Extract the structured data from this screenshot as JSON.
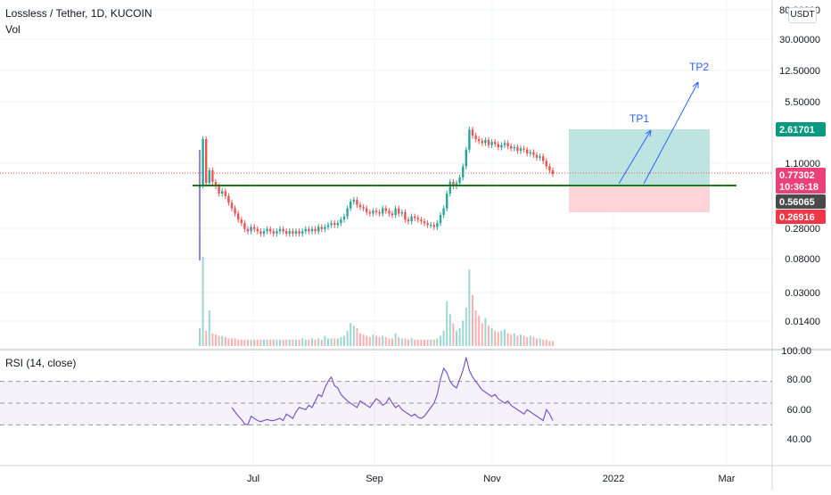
{
  "header": {
    "symbol_line": "Lossless / Tether, 1D, KUCOIN",
    "volume_label": "Vol",
    "currency": "USDT"
  },
  "rsi": {
    "label": "RSI (14, close)"
  },
  "colors": {
    "up": "#26a69a",
    "down": "#ef5350",
    "rsi_line": "#7e57c2",
    "support_line": "#1b7a1b",
    "target_zone": "#b2dfdb",
    "stop_zone": "#ffcdd2",
    "annotation": "#2962ff",
    "current_price_bg": "#ec407a",
    "stop_bg": "#f23645",
    "target_bg": "#089981",
    "level_bg": "#4a4a4a"
  },
  "chart_data": [
    {
      "type": "candlestick",
      "title": "Lossless / Tether, 1D, KUCOIN",
      "y_scale": "log",
      "y_tick_labels": [
        "80.00000",
        "30.00000",
        "12.50000",
        "5.50000",
        "1.10000",
        "0.28000",
        "0.08000",
        "0.03000",
        "0.01400"
      ],
      "x_tick_labels": [
        "Jul",
        "Sep",
        "Nov",
        "2022",
        "Mar"
      ],
      "price_labels": {
        "target": "2.61701",
        "current": "0.77302",
        "countdown": "10:36:18",
        "level": "0.56065",
        "stop": "0.26916"
      },
      "horizontal_level": 0.56065,
      "position": {
        "entry": 0.56065,
        "target": 2.61701,
        "stop": 0.26916
      },
      "annotations": [
        "TP1",
        "TP2"
      ],
      "price_path": [
        [
          0,
          0.56
        ],
        [
          1,
          2.0
        ],
        [
          2,
          0.6
        ],
        [
          3,
          0.85
        ],
        [
          4,
          0.62
        ],
        [
          5,
          0.55
        ],
        [
          6,
          0.45
        ],
        [
          7,
          0.48
        ],
        [
          8,
          0.42
        ],
        [
          9,
          0.35
        ],
        [
          10,
          0.3
        ],
        [
          11,
          0.26
        ],
        [
          12,
          0.22
        ],
        [
          13,
          0.2
        ],
        [
          14,
          0.17
        ],
        [
          15,
          0.16
        ],
        [
          16,
          0.18
        ],
        [
          17,
          0.17
        ],
        [
          18,
          0.16
        ],
        [
          19,
          0.15
        ],
        [
          20,
          0.16
        ],
        [
          21,
          0.17
        ],
        [
          22,
          0.16
        ],
        [
          23,
          0.15
        ],
        [
          24,
          0.16
        ],
        [
          25,
          0.17
        ],
        [
          26,
          0.16
        ],
        [
          27,
          0.15
        ],
        [
          28,
          0.16
        ],
        [
          29,
          0.15
        ],
        [
          30,
          0.16
        ],
        [
          31,
          0.15
        ],
        [
          32,
          0.16
        ],
        [
          33,
          0.17
        ],
        [
          34,
          0.16
        ],
        [
          35,
          0.17
        ],
        [
          36,
          0.16
        ],
        [
          37,
          0.18
        ],
        [
          38,
          0.17
        ],
        [
          39,
          0.18
        ],
        [
          40,
          0.19
        ],
        [
          41,
          0.2
        ],
        [
          42,
          0.19
        ],
        [
          43,
          0.2
        ],
        [
          44,
          0.22
        ],
        [
          45,
          0.24
        ],
        [
          46,
          0.3
        ],
        [
          47,
          0.36
        ],
        [
          48,
          0.38
        ],
        [
          49,
          0.33
        ],
        [
          50,
          0.31
        ],
        [
          51,
          0.3
        ],
        [
          52,
          0.27
        ],
        [
          53,
          0.26
        ],
        [
          54,
          0.28
        ],
        [
          55,
          0.27
        ],
        [
          56,
          0.26
        ],
        [
          57,
          0.3
        ],
        [
          58,
          0.28
        ],
        [
          59,
          0.26
        ],
        [
          60,
          0.25
        ],
        [
          61,
          0.3
        ],
        [
          62,
          0.26
        ],
        [
          63,
          0.27
        ],
        [
          64,
          0.22
        ],
        [
          65,
          0.21
        ],
        [
          66,
          0.24
        ],
        [
          67,
          0.23
        ],
        [
          68,
          0.22
        ],
        [
          69,
          0.21
        ],
        [
          70,
          0.2
        ],
        [
          71,
          0.19
        ],
        [
          72,
          0.19
        ],
        [
          73,
          0.18
        ],
        [
          74,
          0.2
        ],
        [
          75,
          0.25
        ],
        [
          76,
          0.3
        ],
        [
          77,
          0.45
        ],
        [
          78,
          0.62
        ],
        [
          79,
          0.55
        ],
        [
          80,
          0.6
        ],
        [
          81,
          0.7
        ],
        [
          82,
          0.95
        ],
        [
          83,
          1.5
        ],
        [
          84,
          2.6
        ],
        [
          85,
          2.2
        ],
        [
          86,
          2.0
        ],
        [
          87,
          1.9
        ],
        [
          88,
          1.8
        ],
        [
          89,
          1.95
        ],
        [
          90,
          1.7
        ],
        [
          91,
          1.85
        ],
        [
          92,
          1.75
        ],
        [
          93,
          1.6
        ],
        [
          94,
          1.7
        ],
        [
          95,
          1.8
        ],
        [
          96,
          1.65
        ],
        [
          97,
          1.55
        ],
        [
          98,
          1.6
        ],
        [
          99,
          1.45
        ],
        [
          100,
          1.55
        ],
        [
          101,
          1.5
        ],
        [
          102,
          1.35
        ],
        [
          103,
          1.4
        ],
        [
          104,
          1.3
        ],
        [
          105,
          1.2
        ],
        [
          106,
          1.25
        ],
        [
          107,
          1.1
        ],
        [
          108,
          0.95
        ],
        [
          109,
          0.85
        ],
        [
          110,
          0.77
        ]
      ],
      "volume": [
        14,
        70,
        12,
        28,
        10,
        9,
        8,
        8,
        7,
        6,
        6,
        6,
        5,
        5,
        5,
        5,
        5,
        5,
        5,
        5,
        5,
        5,
        5,
        5,
        5,
        5,
        5,
        5,
        5,
        5,
        5,
        5,
        6,
        5,
        5,
        6,
        5,
        6,
        5,
        8,
        6,
        6,
        6,
        6,
        7,
        8,
        12,
        18,
        16,
        14,
        10,
        9,
        8,
        7,
        9,
        8,
        7,
        8,
        7,
        6,
        6,
        10,
        7,
        6,
        6,
        5,
        6,
        5,
        5,
        5,
        5,
        5,
        5,
        5,
        6,
        8,
        12,
        35,
        25,
        18,
        12,
        14,
        20,
        30,
        60,
        40,
        28,
        24,
        18,
        22,
        16,
        14,
        12,
        11,
        12,
        13,
        10,
        9,
        10,
        8,
        9,
        8,
        7,
        8,
        7,
        6,
        6,
        5,
        5,
        4,
        4
      ],
      "volume_unit": "relative"
    },
    {
      "type": "line",
      "title": "RSI (14, close)",
      "y_tick_labels": [
        "100.00",
        "80.00",
        "60.00",
        "40.00"
      ],
      "levels": [
        70,
        50,
        30
      ],
      "series": [
        {
          "values": [
            [
              10,
              46
            ],
            [
              11,
              42
            ],
            [
              12,
              38
            ],
            [
              13,
              35
            ],
            [
              14,
              31
            ],
            [
              15,
              30
            ],
            [
              16,
              38
            ],
            [
              17,
              36
            ],
            [
              18,
              34
            ],
            [
              19,
              33
            ],
            [
              20,
              34
            ],
            [
              21,
              35
            ],
            [
              22,
              34
            ],
            [
              23,
              34
            ],
            [
              24,
              35
            ],
            [
              25,
              36
            ],
            [
              26,
              34
            ],
            [
              27,
              40
            ],
            [
              28,
              38
            ],
            [
              29,
              36
            ],
            [
              30,
              42
            ],
            [
              31,
              46
            ],
            [
              32,
              45
            ],
            [
              33,
              44
            ],
            [
              34,
              48
            ],
            [
              35,
              46
            ],
            [
              36,
              52
            ],
            [
              37,
              58
            ],
            [
              38,
              56
            ],
            [
              39,
              64
            ],
            [
              40,
              70
            ],
            [
              41,
              74
            ],
            [
              42,
              66
            ],
            [
              43,
              64
            ],
            [
              44,
              58
            ],
            [
              45,
              55
            ],
            [
              46,
              52
            ],
            [
              47,
              50
            ],
            [
              48,
              48
            ],
            [
              49,
              46
            ],
            [
              50,
              52
            ],
            [
              51,
              50
            ],
            [
              52,
              48
            ],
            [
              53,
              46
            ],
            [
              54,
              50
            ],
            [
              55,
              54
            ],
            [
              56,
              52
            ],
            [
              57,
              48
            ],
            [
              58,
              50
            ],
            [
              59,
              55
            ],
            [
              60,
              50
            ],
            [
              61,
              46
            ],
            [
              62,
              48
            ],
            [
              63,
              44
            ],
            [
              64,
              42
            ],
            [
              65,
              40
            ],
            [
              66,
              38
            ],
            [
              67,
              40
            ],
            [
              68,
              37
            ],
            [
              69,
              36
            ],
            [
              70,
              38
            ],
            [
              71,
              42
            ],
            [
              72,
              46
            ],
            [
              73,
              50
            ],
            [
              74,
              58
            ],
            [
              75,
              72
            ],
            [
              76,
              82
            ],
            [
              77,
              78
            ],
            [
              78,
              70
            ],
            [
              79,
              66
            ],
            [
              80,
              64
            ],
            [
              81,
              72
            ],
            [
              82,
              80
            ],
            [
              83,
              92
            ],
            [
              84,
              80
            ],
            [
              85,
              74
            ],
            [
              86,
              70
            ],
            [
              87,
              66
            ],
            [
              88,
              62
            ],
            [
              89,
              60
            ],
            [
              90,
              58
            ],
            [
              91,
              56
            ],
            [
              92,
              58
            ],
            [
              93,
              54
            ],
            [
              94,
              52
            ],
            [
              95,
              50
            ],
            [
              96,
              52
            ],
            [
              97,
              48
            ],
            [
              98,
              46
            ],
            [
              99,
              44
            ],
            [
              100,
              42
            ],
            [
              101,
              40
            ],
            [
              102,
              44
            ],
            [
              103,
              42
            ],
            [
              104,
              40
            ],
            [
              105,
              38
            ],
            [
              106,
              36
            ],
            [
              107,
              34
            ],
            [
              108,
              44
            ],
            [
              109,
              40
            ],
            [
              110,
              34
            ]
          ]
        }
      ]
    }
  ]
}
